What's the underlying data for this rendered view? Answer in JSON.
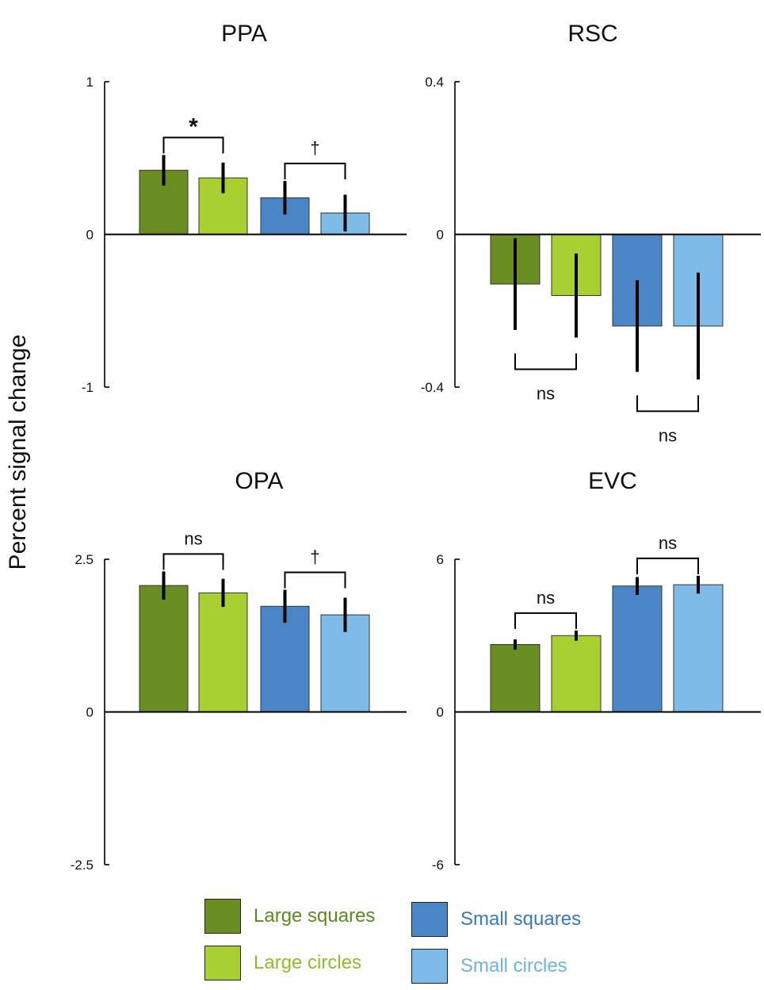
{
  "y_axis_label": "Percent signal change",
  "colors": {
    "Large squares": "#6b8e23",
    "Large circles": "#a8d030",
    "Small squares": "#4a86c5",
    "Small circles": "#7fbbe8"
  },
  "legend": [
    {
      "label": "Large squares",
      "color": "#6b8e23",
      "text_color": "#5b8a1e"
    },
    {
      "label": "Large circles",
      "color": "#a8d030",
      "text_color": "#8cbf28"
    },
    {
      "label": "Small squares",
      "color": "#4a86c5",
      "text_color": "#3a78c0"
    },
    {
      "label": "Small circles",
      "color": "#7fbbe8",
      "text_color": "#6db3e6"
    }
  ],
  "chart_data": [
    {
      "type": "bar",
      "title": "PPA",
      "categories": [
        "Large squares",
        "Large circles",
        "Small squares",
        "Small circles"
      ],
      "values": [
        0.42,
        0.37,
        0.24,
        0.14
      ],
      "error": [
        0.1,
        0.1,
        0.11,
        0.12
      ],
      "ylim": [
        -1,
        1
      ],
      "yticks": [
        1,
        0,
        -1
      ],
      "ytick_labels": [
        "1",
        "0",
        "-1"
      ],
      "comparisons": [
        {
          "bars": [
            0,
            1
          ],
          "label": "*",
          "position": "above"
        },
        {
          "bars": [
            2,
            3
          ],
          "label": "†",
          "position": "above"
        }
      ]
    },
    {
      "type": "bar",
      "title": "RSC",
      "categories": [
        "Large squares",
        "Large circles",
        "Small squares",
        "Small circles"
      ],
      "values": [
        -0.13,
        -0.16,
        -0.24,
        -0.24
      ],
      "error": [
        0.12,
        0.11,
        0.12,
        0.14
      ],
      "ylim": [
        -0.4,
        0.4
      ],
      "yticks": [
        0.4,
        0,
        -0.4
      ],
      "ytick_labels": [
        "0.4",
        "0",
        "-0.4"
      ],
      "comparisons": [
        {
          "bars": [
            0,
            1
          ],
          "label": "ns",
          "position": "below"
        },
        {
          "bars": [
            2,
            3
          ],
          "label": "ns",
          "position": "below"
        }
      ]
    },
    {
      "type": "bar",
      "title": "OPA",
      "categories": [
        "Large squares",
        "Large circles",
        "Small squares",
        "Small circles"
      ],
      "values": [
        2.07,
        1.95,
        1.73,
        1.59
      ],
      "error": [
        0.23,
        0.23,
        0.27,
        0.28
      ],
      "ylim": [
        -2.5,
        2.5
      ],
      "yticks": [
        2.5,
        0,
        -2.5
      ],
      "ytick_labels": [
        "2.5",
        "0",
        "-2.5"
      ],
      "comparisons": [
        {
          "bars": [
            0,
            1
          ],
          "label": "ns",
          "position": "above"
        },
        {
          "bars": [
            2,
            3
          ],
          "label": "†",
          "position": "above"
        }
      ]
    },
    {
      "type": "bar",
      "title": "EVC",
      "categories": [
        "Large squares",
        "Large circles",
        "Small squares",
        "Small circles"
      ],
      "values": [
        2.65,
        3.0,
        4.95,
        5.0
      ],
      "error": [
        0.2,
        0.2,
        0.35,
        0.35
      ],
      "ylim": [
        -6,
        6
      ],
      "yticks": [
        6,
        0,
        -6
      ],
      "ytick_labels": [
        "6",
        "0",
        "-6"
      ],
      "comparisons": [
        {
          "bars": [
            0,
            1
          ],
          "label": "ns",
          "position": "above"
        },
        {
          "bars": [
            2,
            3
          ],
          "label": "ns",
          "position": "above"
        }
      ]
    }
  ]
}
